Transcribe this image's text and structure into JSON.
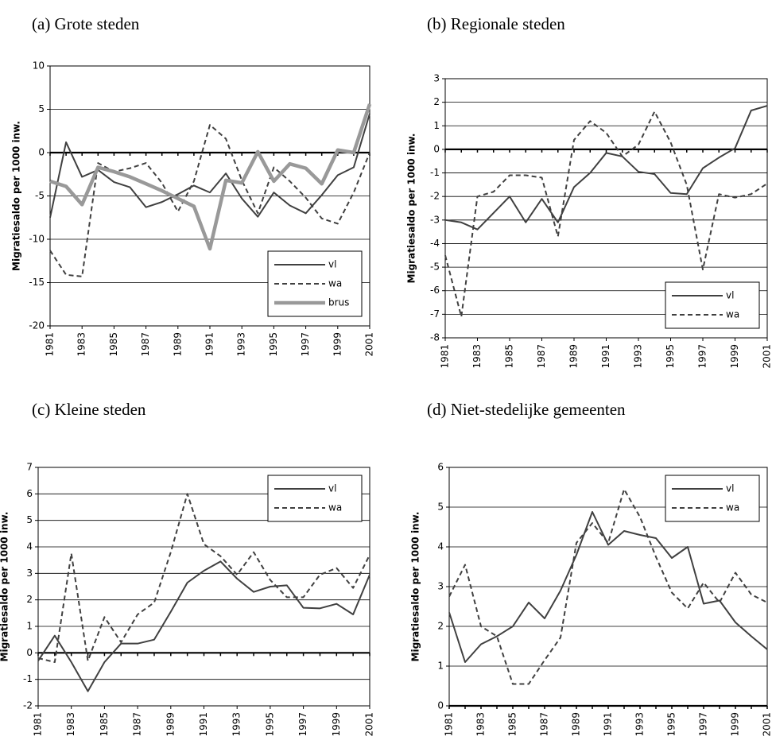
{
  "chart_data": [
    {
      "type": "line",
      "title": "(a) Grote steden",
      "ylabel": "Migratiesaldo per 1000 inw.",
      "x": [
        1981,
        1982,
        1983,
        1984,
        1985,
        1986,
        1987,
        1988,
        1989,
        1990,
        1991,
        1992,
        1993,
        1994,
        1995,
        1996,
        1997,
        1998,
        1999,
        2000,
        2001
      ],
      "xlim": [
        1981,
        2001
      ],
      "xticks": [
        1981,
        1983,
        1985,
        1987,
        1989,
        1991,
        1993,
        1995,
        1997,
        1999,
        2001
      ],
      "ylim": [
        -20,
        10
      ],
      "yticks": [
        -20,
        -15,
        -10,
        -5,
        0,
        5,
        10
      ],
      "grid": true,
      "legend": "lower right",
      "series": [
        {
          "name": "vl",
          "color": "#404040",
          "values": [
            -7.5,
            1.2,
            -2.8,
            -2.0,
            -3.4,
            -4.0,
            -6.3,
            -5.7,
            -4.8,
            -3.8,
            -4.6,
            -2.4,
            -5.3,
            -7.4,
            -4.6,
            -6.1,
            -7.0,
            -4.9,
            -2.6,
            -1.7,
            4.5
          ]
        },
        {
          "name": "wa",
          "color": "#404040",
          "dashed": true,
          "values": [
            -11.3,
            -14.1,
            -14.3,
            -1.2,
            -2.2,
            -1.8,
            -1.2,
            -3.5,
            -6.8,
            -3.3,
            3.2,
            1.6,
            -3.2,
            -7.0,
            -1.7,
            -3.3,
            -5.2,
            -7.6,
            -8.2,
            -4.6,
            0.0
          ]
        },
        {
          "name": "brus",
          "color": "#999999",
          "thick": true,
          "values": [
            -3.3,
            -3.9,
            -6.0,
            -1.7,
            -2.2,
            -2.8,
            -3.6,
            -4.4,
            -5.3,
            -6.2,
            -11.1,
            -3.2,
            -3.5,
            0.1,
            -3.3,
            -1.3,
            -1.8,
            -3.6,
            0.3,
            0.0,
            5.6
          ]
        }
      ]
    },
    {
      "type": "line",
      "title": "(b) Regionale steden",
      "ylabel": "Migratiesaldo per 1000 inw.",
      "x": [
        1981,
        1982,
        1983,
        1984,
        1985,
        1986,
        1987,
        1988,
        1989,
        1990,
        1991,
        1992,
        1993,
        1994,
        1995,
        1996,
        1997,
        1998,
        1999,
        2000,
        2001
      ],
      "xlim": [
        1981,
        2001
      ],
      "xticks": [
        1981,
        1983,
        1985,
        1987,
        1989,
        1991,
        1993,
        1995,
        1997,
        1999,
        2001
      ],
      "ylim": [
        -8,
        3
      ],
      "yticks": [
        -8,
        -7,
        -6,
        -5,
        -4,
        -3,
        -2,
        -1,
        0,
        1,
        2,
        3
      ],
      "grid": true,
      "legend": "lower right",
      "series": [
        {
          "name": "vl",
          "color": "#404040",
          "values": [
            -3.0,
            -3.1,
            -3.4,
            -2.7,
            -2.0,
            -3.1,
            -2.1,
            -3.1,
            -1.6,
            -1.0,
            -0.15,
            -0.3,
            -0.95,
            -1.05,
            -1.85,
            -1.9,
            -0.8,
            -0.35,
            0.05,
            1.65,
            1.85
          ]
        },
        {
          "name": "wa",
          "color": "#404040",
          "dashed": true,
          "values": [
            -4.5,
            -7.1,
            -2.0,
            -1.8,
            -1.1,
            -1.1,
            -1.2,
            -3.7,
            0.4,
            1.2,
            0.7,
            -0.3,
            0.2,
            1.6,
            0.3,
            -1.5,
            -5.1,
            -1.9,
            -2.05,
            -1.9,
            -1.45
          ]
        }
      ]
    },
    {
      "type": "line",
      "title": "(c) Kleine steden",
      "ylabel": "Migratiesaldo per 1000 inw.",
      "x": [
        1981,
        1982,
        1983,
        1984,
        1985,
        1986,
        1987,
        1988,
        1989,
        1990,
        1991,
        1992,
        1993,
        1994,
        1995,
        1996,
        1997,
        1998,
        1999,
        2000,
        2001
      ],
      "xlim": [
        1981,
        2001
      ],
      "xticks": [
        1981,
        1983,
        1985,
        1987,
        1989,
        1991,
        1993,
        1995,
        1997,
        1999,
        2001
      ],
      "ylim": [
        -2,
        7
      ],
      "yticks": [
        -2,
        -1,
        0,
        1,
        2,
        3,
        4,
        5,
        6,
        7
      ],
      "grid": true,
      "legend": "upper right",
      "series": [
        {
          "name": "vl",
          "color": "#404040",
          "values": [
            -0.3,
            0.65,
            -0.35,
            -1.45,
            -0.35,
            0.35,
            0.35,
            0.5,
            1.55,
            2.65,
            3.1,
            3.45,
            2.8,
            2.3,
            2.5,
            2.55,
            1.7,
            1.68,
            1.85,
            1.45,
            2.95
          ]
        },
        {
          "name": "wa",
          "color": "#404040",
          "dashed": true,
          "values": [
            -0.2,
            -0.35,
            3.75,
            -0.3,
            1.35,
            0.4,
            1.45,
            1.9,
            3.8,
            6.0,
            4.1,
            3.65,
            2.95,
            3.8,
            2.75,
            2.1,
            2.1,
            2.95,
            3.2,
            2.45,
            3.7
          ]
        }
      ]
    },
    {
      "type": "line",
      "title": "(d) Niet-stedelijke gemeenten",
      "ylabel": "Migratiesaldo per 1000 inw.",
      "x": [
        1981,
        1982,
        1983,
        1984,
        1985,
        1986,
        1987,
        1988,
        1989,
        1990,
        1991,
        1992,
        1993,
        1994,
        1995,
        1996,
        1997,
        1998,
        1999,
        2000,
        2001
      ],
      "xlim": [
        1981,
        2001
      ],
      "xticks": [
        1981,
        1983,
        1985,
        1987,
        1989,
        1991,
        1993,
        1995,
        1997,
        1999,
        2001
      ],
      "ylim": [
        0,
        6
      ],
      "yticks": [
        0,
        1,
        2,
        3,
        4,
        5,
        6
      ],
      "grid": true,
      "legend": "upper right",
      "series": [
        {
          "name": "vl",
          "color": "#404040",
          "values": [
            2.35,
            1.1,
            1.55,
            1.75,
            2.0,
            2.6,
            2.2,
            2.9,
            3.8,
            4.88,
            4.05,
            4.4,
            4.3,
            4.22,
            3.72,
            4.0,
            2.57,
            2.65,
            2.1,
            1.75,
            1.42
          ]
        },
        {
          "name": "wa",
          "color": "#404040",
          "dashed": true,
          "values": [
            2.75,
            3.55,
            2.0,
            1.75,
            0.55,
            0.55,
            1.15,
            1.72,
            4.1,
            4.6,
            4.1,
            5.45,
            4.75,
            3.75,
            2.85,
            2.45,
            3.1,
            2.6,
            3.35,
            2.8,
            2.6
          ]
        }
      ]
    }
  ]
}
